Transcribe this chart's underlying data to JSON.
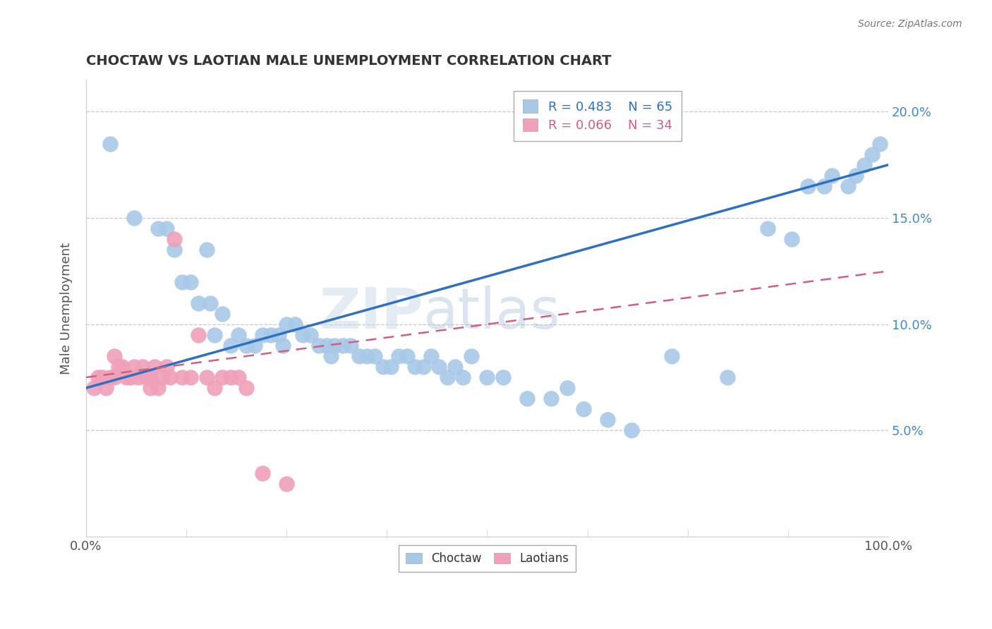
{
  "title": "CHOCTAW VS LAOTIAN MALE UNEMPLOYMENT CORRELATION CHART",
  "source_text": "Source: ZipAtlas.com",
  "ylabel": "Male Unemployment",
  "watermark": "ZIPatlas",
  "xlim": [
    0.0,
    100.0
  ],
  "ylim": [
    0.0,
    21.5
  ],
  "yticks": [
    5.0,
    10.0,
    15.0,
    20.0
  ],
  "ytick_labels": [
    "5.0%",
    "10.0%",
    "15.0%",
    "20.0%"
  ],
  "xticks": [
    0.0,
    100.0
  ],
  "xtick_labels": [
    "0.0%",
    "100.0%"
  ],
  "legend_r1": "R = 0.483",
  "legend_n1": "N = 65",
  "legend_r2": "R = 0.066",
  "legend_n2": "N = 34",
  "choctaw_color": "#a8c8e8",
  "laotian_color": "#f0a0b8",
  "choctaw_line_color": "#3070c0",
  "laotian_line_color": "#d06080",
  "background_color": "#ffffff",
  "grid_color": "#c8c8c8",
  "title_color": "#333333",
  "ytick_color": "#4488cc",
  "xtick_color": "#555555",
  "choctaw_x": [
    3.0,
    6.0,
    9.0,
    10.0,
    11.0,
    12.0,
    13.0,
    14.0,
    15.0,
    15.5,
    16.0,
    17.0,
    18.0,
    19.0,
    20.0,
    21.0,
    22.0,
    23.0,
    24.0,
    24.5,
    25.0,
    26.0,
    27.0,
    28.0,
    29.0,
    30.0,
    30.5,
    31.0,
    32.0,
    33.0,
    34.0,
    35.0,
    36.0,
    37.0,
    38.0,
    39.0,
    40.0,
    41.0,
    42.0,
    43.0,
    44.0,
    45.0,
    46.0,
    47.0,
    48.0,
    50.0,
    52.0,
    55.0,
    58.0,
    60.0,
    62.0,
    65.0,
    68.0,
    73.0,
    80.0,
    85.0,
    88.0,
    90.0,
    92.0,
    93.0,
    95.0,
    96.0,
    97.0,
    98.0,
    99.0
  ],
  "choctaw_y": [
    18.5,
    15.0,
    14.5,
    14.5,
    13.5,
    12.0,
    12.0,
    11.0,
    13.5,
    11.0,
    9.5,
    10.5,
    9.0,
    9.5,
    9.0,
    9.0,
    9.5,
    9.5,
    9.5,
    9.0,
    10.0,
    10.0,
    9.5,
    9.5,
    9.0,
    9.0,
    8.5,
    9.0,
    9.0,
    9.0,
    8.5,
    8.5,
    8.5,
    8.0,
    8.0,
    8.5,
    8.5,
    8.0,
    8.0,
    8.5,
    8.0,
    7.5,
    8.0,
    7.5,
    8.5,
    7.5,
    7.5,
    6.5,
    6.5,
    7.0,
    6.0,
    5.5,
    5.0,
    8.5,
    7.5,
    14.5,
    14.0,
    16.5,
    16.5,
    17.0,
    16.5,
    17.0,
    17.5,
    18.0,
    18.5
  ],
  "laotian_x": [
    1.0,
    1.5,
    2.0,
    2.5,
    3.0,
    3.5,
    3.5,
    4.0,
    4.5,
    5.0,
    5.5,
    6.0,
    6.5,
    7.0,
    7.5,
    8.0,
    8.0,
    8.5,
    9.0,
    9.5,
    10.0,
    10.5,
    11.0,
    12.0,
    13.0,
    14.0,
    15.0,
    16.0,
    17.0,
    18.0,
    19.0,
    20.0,
    22.0,
    25.0
  ],
  "laotian_y": [
    7.0,
    7.5,
    7.5,
    7.0,
    7.5,
    8.5,
    7.5,
    8.0,
    8.0,
    7.5,
    7.5,
    8.0,
    7.5,
    8.0,
    7.5,
    7.5,
    7.0,
    8.0,
    7.0,
    7.5,
    8.0,
    7.5,
    14.0,
    7.5,
    7.5,
    9.5,
    7.5,
    7.0,
    7.5,
    7.5,
    7.5,
    7.0,
    3.0,
    2.5
  ],
  "choctaw_line_y0": 7.0,
  "choctaw_line_y1": 17.5,
  "laotian_line_y0": 7.5,
  "laotian_line_y1": 12.5
}
